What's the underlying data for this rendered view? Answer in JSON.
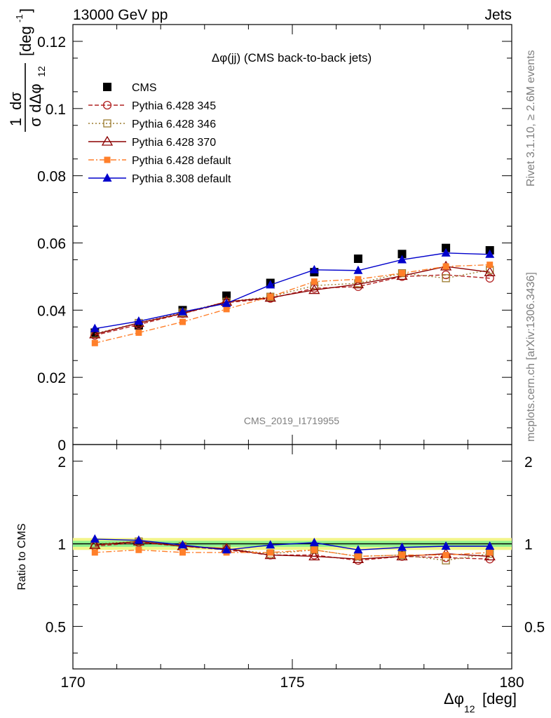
{
  "header": {
    "energy_label": "13000 GeV pp",
    "group_label": "Jets"
  },
  "side_labels": {
    "rivet": "Rivet 3.1.10, ≥ 2.6M events",
    "mcplots": "mcplots.cern.ch [arXiv:1306.3436]"
  },
  "watermark": "CMS_2019_I1719955",
  "chart_data": [
    {
      "type": "line",
      "title": "Δφ(jj) (CMS back-to-back jets)",
      "xlabel_main": "Δφ",
      "xlabel_sub": "12",
      "xlabel_unit": "[deg]",
      "ylabel_frac_num": "1",
      "ylabel_frac_num2": "dσ",
      "ylabel_den1": "σ",
      "ylabel_den2": "dΔφ",
      "ylabel_den_sub": "12",
      "ylabel_unit_open": "[deg",
      "ylabel_unit_sup": "-1",
      "ylabel_unit_close": "]",
      "xlim": [
        170,
        180
      ],
      "ylim": [
        0,
        0.125
      ],
      "x_ticks": [
        "170",
        "175",
        "180"
      ],
      "y_ticks": [
        "0",
        "0.02",
        "0.04",
        "0.06",
        "0.08",
        "0.1",
        "0.12"
      ],
      "x": [
        170.5,
        171.5,
        172.5,
        173.5,
        174.5,
        175.5,
        176.5,
        177.5,
        178.5,
        179.5
      ],
      "legend_position": "top-left",
      "series": [
        {
          "name": "CMS",
          "color": "#000000",
          "marker": "filled-square",
          "style": "points",
          "values": [
            0.0333,
            0.0355,
            0.04,
            0.0443,
            0.0481,
            0.0513,
            0.0553,
            0.0567,
            0.0585,
            0.0578
          ]
        },
        {
          "name": "Pythia 6.428 345",
          "color": "#b22222",
          "marker": "open-circle",
          "style": "dashed",
          "values": [
            0.0325,
            0.0357,
            0.039,
            0.0422,
            0.0435,
            0.0465,
            0.047,
            0.05,
            0.0505,
            0.0495
          ]
        },
        {
          "name": "Pythia 6.428 346",
          "color": "#9c7b2e",
          "marker": "open-square",
          "style": "dotted",
          "values": [
            0.033,
            0.0362,
            0.0393,
            0.0425,
            0.044,
            0.0473,
            0.048,
            0.051,
            0.0495,
            0.052
          ]
        },
        {
          "name": "Pythia 6.428 370",
          "color": "#8b0000",
          "marker": "open-triangle",
          "style": "solid",
          "values": [
            0.0328,
            0.0362,
            0.039,
            0.0425,
            0.0437,
            0.046,
            0.0477,
            0.0502,
            0.053,
            0.0513
          ]
        },
        {
          "name": "Pythia 6.428 default",
          "color": "#ff7f2a",
          "marker": "filled-square-small",
          "style": "dashdot",
          "values": [
            0.0302,
            0.0333,
            0.0365,
            0.0403,
            0.044,
            0.0485,
            0.0492,
            0.051,
            0.053,
            0.0535
          ]
        },
        {
          "name": "Pythia 8.308 default",
          "color": "#0000cc",
          "marker": "filled-triangle",
          "style": "solid",
          "values": [
            0.0345,
            0.0367,
            0.0395,
            0.042,
            0.0475,
            0.052,
            0.0518,
            0.055,
            0.057,
            0.0566
          ]
        }
      ]
    },
    {
      "type": "line",
      "ylabel": "Ratio to CMS",
      "xlim": [
        170,
        180
      ],
      "ylim": [
        0.35,
        2.3
      ],
      "scale": "log",
      "x_ticks": [
        "170",
        "175",
        "180"
      ],
      "y_ticks": [
        "0.5",
        "1",
        "2"
      ],
      "x": [
        170.5,
        171.5,
        172.5,
        173.5,
        174.5,
        175.5,
        176.5,
        177.5,
        178.5,
        179.5
      ],
      "band": {
        "lower": 0.95,
        "upper": 1.05,
        "inner_lower": 0.975,
        "inner_upper": 1.025
      },
      "series": [
        {
          "name": "Pythia 6.428 345",
          "values": [
            0.98,
            1.01,
            0.98,
            0.95,
            0.91,
            0.91,
            0.87,
            0.9,
            0.89,
            0.88
          ]
        },
        {
          "name": "Pythia 6.428 346",
          "values": [
            1.0,
            1.02,
            0.98,
            0.96,
            0.92,
            0.95,
            0.9,
            0.91,
            0.87,
            0.92
          ]
        },
        {
          "name": "Pythia 6.428 370",
          "values": [
            0.99,
            1.02,
            0.98,
            0.96,
            0.91,
            0.9,
            0.88,
            0.9,
            0.92,
            0.9
          ]
        },
        {
          "name": "Pythia 6.428 default",
          "values": [
            0.93,
            0.95,
            0.93,
            0.93,
            0.93,
            0.95,
            0.9,
            0.91,
            0.91,
            0.93
          ]
        },
        {
          "name": "Pythia 8.308 default",
          "values": [
            1.04,
            1.03,
            0.99,
            0.95,
            0.99,
            1.01,
            0.95,
            0.97,
            0.98,
            0.98
          ]
        }
      ]
    }
  ]
}
